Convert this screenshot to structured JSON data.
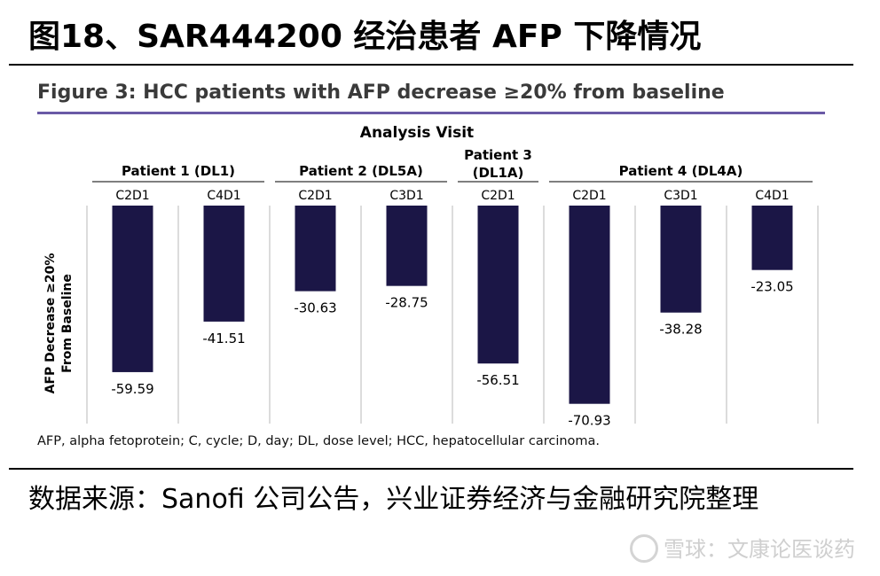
{
  "report": {
    "title": "图18、SAR444200 经治患者 AFP 下降情况",
    "source": "数据来源：Sanofi 公司公告，兴业证券经济与金融研究院整理",
    "watermark": "雪球：文康论医谈药"
  },
  "chart_data": {
    "type": "bar",
    "title": "Figure 3: HCC patients with AFP decrease ≥20% from baseline",
    "top_axis_label": "Analysis Visit",
    "ylabel_lines": [
      "AFP Decrease ≥20%",
      "From Baseline"
    ],
    "groups": [
      {
        "name": "Patient 1 (DL1)",
        "visits": [
          "C2D1",
          "C4D1"
        ]
      },
      {
        "name": "Patient 2 (DL5A)",
        "visits": [
          "C2D1",
          "C3D1"
        ]
      },
      {
        "name": "Patient 3 (DL1A)",
        "visits": [
          "C2D1"
        ]
      },
      {
        "name": "Patient 4 (DL4A)",
        "visits": [
          "C2D1",
          "C3D1",
          "C4D1"
        ]
      }
    ],
    "categories": [
      "C2D1",
      "C4D1",
      "C2D1",
      "C3D1",
      "C2D1",
      "C2D1",
      "C3D1",
      "C4D1"
    ],
    "values": [
      -59.59,
      -41.51,
      -30.63,
      -28.75,
      -56.51,
      -70.93,
      -38.28,
      -23.05
    ],
    "value_labels": [
      "-59.59",
      "-41.51",
      "-30.63",
      "-28.75",
      "-56.51",
      "-70.93",
      "-38.28",
      "-23.05"
    ],
    "ylim": [
      -78,
      0
    ],
    "footnote": "AFP, alpha fetoprotein; C, cycle; D, day; DL, dose level; HCC, hepatocellular carcinoma.",
    "colors": {
      "bar": "#1b1646",
      "grid": "#b9b9b9",
      "accent": "#6a5aa6"
    }
  }
}
